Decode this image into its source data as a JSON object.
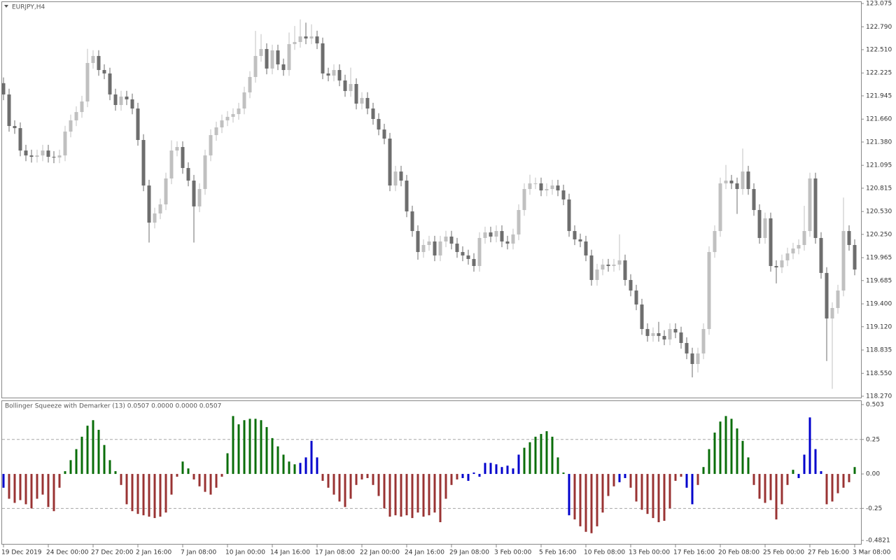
{
  "chart_data": [
    {
      "type": "candlestick",
      "title": "EURJPY,H4",
      "open": [
        122.1,
        121.962,
        121.576,
        121.55,
        121.276,
        121.216,
        121.199,
        121.216,
        121.276,
        121.199,
        121.191,
        121.216,
        121.508,
        121.645,
        121.747,
        121.876,
        122.347,
        122.433,
        122.261,
        122.219,
        121.962,
        121.833,
        121.936,
        121.902,
        121.79,
        121.405,
        120.848,
        120.394,
        120.506,
        120.617,
        120.934,
        121.276,
        121.319,
        121.062,
        120.908,
        120.592,
        120.805,
        121.216,
        121.465,
        121.559,
        121.645,
        121.688,
        121.722,
        121.79,
        121.987,
        122.176,
        122.433,
        122.518,
        122.279,
        122.501,
        122.33,
        122.261,
        122.578,
        122.604,
        122.672,
        122.647,
        122.672,
        122.587,
        122.219,
        122.193,
        122.261,
        122.133,
        122.004,
        122.09,
        121.85,
        121.919,
        121.79,
        121.662,
        121.533,
        121.422,
        120.848,
        121.019,
        120.908,
        120.531,
        120.291,
        120.034,
        120.12,
        120.163,
        119.992,
        120.163,
        120.223,
        120.137,
        120.034,
        119.992,
        119.949,
        119.863,
        120.206,
        120.274,
        120.223,
        120.291,
        120.163,
        120.137,
        120.249,
        120.548,
        120.805,
        120.874,
        120.874,
        120.788,
        120.805,
        120.848,
        120.788,
        120.677,
        120.291,
        120.189,
        120.163,
        119.992,
        119.692,
        119.82,
        119.88,
        119.863,
        119.88,
        119.932,
        119.692,
        119.563,
        119.392,
        119.092,
        119.007,
        119.041,
        119.007,
        118.964,
        119.092,
        119.05,
        118.921,
        118.793,
        118.664,
        118.793,
        119.092,
        120.034,
        120.291,
        120.874,
        120.908,
        120.874,
        120.805,
        121.019,
        120.805,
        120.548,
        120.206,
        120.446,
        119.863,
        119.846,
        119.932,
        120.017,
        120.077,
        120.12,
        120.291,
        120.934,
        120.206,
        119.778,
        119.221,
        119.349,
        119.563,
        120.291,
        120.12
      ],
      "high": [
        122.17,
        122.032,
        121.646,
        121.62,
        121.346,
        121.286,
        121.286,
        121.346,
        121.346,
        121.269,
        121.286,
        121.578,
        121.715,
        121.817,
        121.946,
        122.52,
        122.503,
        122.503,
        122.331,
        122.289,
        122.032,
        122.006,
        122.006,
        121.972,
        121.86,
        121.475,
        120.918,
        120.576,
        120.687,
        121.004,
        121.4,
        121.389,
        121.389,
        121.132,
        120.978,
        120.875,
        121.286,
        121.535,
        121.629,
        121.715,
        121.758,
        121.792,
        121.86,
        122.057,
        122.246,
        122.74,
        122.7,
        122.588,
        122.571,
        122.571,
        122.4,
        122.72,
        122.8,
        122.88,
        122.84,
        122.82,
        122.742,
        122.657,
        122.289,
        122.331,
        122.331,
        122.203,
        122.29,
        122.16,
        121.989,
        121.989,
        121.86,
        121.732,
        121.603,
        121.492,
        121.089,
        121.089,
        120.978,
        120.601,
        120.361,
        120.19,
        120.233,
        120.233,
        120.233,
        120.293,
        120.293,
        120.207,
        120.104,
        120.062,
        120.019,
        120.276,
        120.344,
        120.344,
        120.361,
        120.361,
        120.233,
        120.319,
        120.618,
        120.875,
        120.98,
        120.944,
        120.944,
        120.875,
        120.918,
        120.918,
        120.858,
        120.747,
        120.361,
        120.259,
        120.233,
        120.062,
        119.89,
        119.95,
        119.95,
        119.95,
        120.25,
        120.002,
        119.762,
        119.633,
        119.462,
        119.162,
        119.111,
        119.18,
        119.077,
        119.162,
        119.162,
        119.12,
        118.991,
        118.863,
        118.863,
        119.162,
        120.104,
        120.361,
        120.944,
        121.1,
        120.978,
        120.944,
        121.3,
        121.089,
        120.875,
        120.618,
        120.516,
        120.516,
        119.933,
        120.002,
        120.087,
        120.147,
        120.19,
        120.6,
        121.004,
        121.004,
        120.276,
        119.848,
        119.419,
        119.633,
        120.7,
        120.361,
        120.19
      ],
      "low": [
        121.892,
        121.506,
        121.48,
        121.206,
        121.146,
        121.129,
        121.129,
        121.146,
        121.129,
        121.121,
        121.121,
        121.146,
        121.438,
        121.575,
        121.677,
        121.806,
        122.277,
        122.191,
        122.149,
        121.892,
        121.763,
        121.763,
        121.832,
        121.72,
        121.335,
        120.778,
        120.15,
        120.324,
        120.436,
        120.547,
        120.864,
        121.206,
        120.992,
        120.838,
        120.15,
        120.522,
        120.735,
        121.146,
        121.395,
        121.489,
        121.575,
        121.618,
        121.652,
        121.72,
        121.917,
        122.106,
        122.363,
        122.209,
        122.209,
        122.26,
        122.191,
        122.191,
        122.508,
        122.534,
        122.577,
        122.577,
        122.517,
        122.149,
        122.123,
        122.123,
        122.063,
        121.934,
        121.934,
        121.78,
        121.78,
        121.72,
        121.592,
        121.463,
        121.352,
        120.778,
        120.778,
        120.838,
        120.461,
        120.221,
        119.94,
        119.964,
        120.05,
        119.922,
        119.922,
        120.093,
        120.067,
        119.964,
        119.922,
        119.879,
        119.793,
        119.793,
        120.136,
        120.153,
        120.153,
        120.093,
        120.067,
        120.067,
        120.179,
        120.478,
        120.735,
        120.804,
        120.718,
        120.718,
        120.735,
        120.718,
        120.607,
        120.221,
        120.119,
        120.093,
        119.922,
        119.622,
        119.622,
        119.75,
        119.793,
        119.793,
        119.81,
        119.622,
        119.493,
        119.322,
        119.022,
        118.937,
        118.937,
        118.937,
        118.894,
        118.894,
        118.98,
        118.851,
        118.723,
        118.5,
        118.56,
        118.723,
        119.022,
        119.964,
        120.221,
        120.804,
        120.804,
        120.5,
        120.735,
        120.735,
        120.478,
        120.136,
        120.136,
        119.793,
        119.65,
        119.776,
        119.862,
        119.947,
        120.007,
        120.05,
        120.221,
        120.136,
        119.708,
        118.7,
        118.36,
        119.28,
        119.493,
        120.05,
        119.75
      ],
      "close": [
        121.962,
        121.576,
        121.55,
        121.276,
        121.216,
        121.199,
        121.216,
        121.276,
        121.199,
        121.191,
        121.216,
        121.508,
        121.645,
        121.747,
        121.876,
        122.347,
        122.433,
        122.261,
        122.219,
        121.962,
        121.833,
        121.936,
        121.902,
        121.79,
        121.405,
        120.848,
        120.394,
        120.506,
        120.617,
        120.934,
        121.276,
        121.319,
        121.062,
        120.908,
        120.592,
        120.805,
        121.216,
        121.465,
        121.559,
        121.645,
        121.688,
        121.722,
        121.79,
        121.987,
        122.176,
        122.433,
        122.518,
        122.279,
        122.501,
        122.33,
        122.261,
        122.578,
        122.604,
        122.672,
        122.647,
        122.672,
        122.587,
        122.219,
        122.193,
        122.261,
        122.133,
        122.004,
        122.09,
        121.85,
        121.919,
        121.79,
        121.662,
        121.533,
        121.422,
        120.848,
        121.019,
        120.908,
        120.531,
        120.291,
        120.034,
        120.12,
        120.163,
        119.992,
        120.163,
        120.223,
        120.137,
        120.034,
        119.992,
        119.949,
        119.863,
        120.206,
        120.274,
        120.223,
        120.291,
        120.163,
        120.137,
        120.249,
        120.548,
        120.805,
        120.874,
        120.874,
        120.788,
        120.805,
        120.848,
        120.788,
        120.677,
        120.291,
        120.189,
        120.163,
        119.992,
        119.692,
        119.82,
        119.88,
        119.863,
        119.88,
        119.932,
        119.692,
        119.563,
        119.392,
        119.092,
        119.007,
        119.041,
        119.007,
        118.964,
        119.092,
        119.05,
        118.921,
        118.793,
        118.664,
        118.793,
        119.092,
        120.034,
        120.291,
        120.874,
        120.908,
        120.874,
        120.805,
        121.019,
        120.805,
        120.548,
        120.206,
        120.446,
        119.863,
        119.846,
        119.932,
        120.017,
        120.077,
        120.12,
        120.291,
        120.934,
        120.206,
        119.778,
        119.221,
        119.349,
        119.563,
        120.291,
        120.12,
        119.82
      ],
      "up_color": "#c0c0c0",
      "down_color": "#6e6e6e",
      "ylim": [
        118.27,
        123.075
      ],
      "yticks": [
        123.075,
        {
          "value": 122.79,
          "label": "122.790"
        },
        {
          "value": 122.51,
          "label": "122.510"
        },
        122.225,
        121.945,
        {
          "value": 121.66,
          "label": "121.660"
        },
        {
          "value": 121.38,
          "label": "121.380"
        },
        121.095,
        120.815,
        {
          "value": 120.53,
          "label": "120.530"
        },
        {
          "value": 120.25,
          "label": "120.250"
        },
        119.965,
        119.685,
        {
          "value": 119.4,
          "label": "119.400"
        },
        {
          "value": 119.12,
          "label": "119.120"
        },
        118.835,
        {
          "value": 118.55,
          "label": "118.550"
        },
        {
          "value": 118.27,
          "label": "118.270"
        }
      ]
    },
    {
      "type": "bar",
      "title": "Bollinger Squeeze with Demarker (13) 0.0507 0.0000 0.0000 0.0507",
      "categories": [
        "19 Dec 2019",
        null,
        null,
        null,
        null,
        null,
        null,
        null,
        "24 Dec 00:00",
        null,
        null,
        null,
        null,
        null,
        null,
        null,
        "27 Dec 20:00",
        null,
        null,
        null,
        null,
        null,
        null,
        null,
        "2 Jan 16:00",
        null,
        null,
        null,
        null,
        null,
        null,
        null,
        "7 Jan 08:00",
        null,
        null,
        null,
        null,
        null,
        null,
        null,
        "10 Jan 00:00",
        null,
        null,
        null,
        null,
        null,
        null,
        null,
        "14 Jan 16:00",
        null,
        null,
        null,
        null,
        null,
        null,
        null,
        "17 Jan 08:00",
        null,
        null,
        null,
        null,
        null,
        null,
        null,
        "22 Jan 00:00",
        null,
        null,
        null,
        null,
        null,
        null,
        null,
        "24 Jan 16:00",
        null,
        null,
        null,
        null,
        null,
        null,
        null,
        "29 Jan 08:00",
        null,
        null,
        null,
        null,
        null,
        null,
        null,
        "3 Feb 00:00",
        null,
        null,
        null,
        null,
        null,
        null,
        null,
        "5 Feb 16:00",
        null,
        null,
        null,
        null,
        null,
        null,
        null,
        "10 Feb 08:00",
        null,
        null,
        null,
        null,
        null,
        null,
        null,
        "13 Feb 00:00",
        null,
        null,
        null,
        null,
        null,
        null,
        null,
        "17 Feb 16:00",
        null,
        null,
        null,
        null,
        null,
        null,
        null,
        "20 Feb 08:00",
        null,
        null,
        null,
        null,
        null,
        null,
        null,
        "25 Feb 00:00",
        null,
        null,
        null,
        null,
        null,
        null,
        null,
        "27 Feb 16:00",
        null,
        null,
        null,
        null,
        null,
        null,
        null,
        "3 Mar 08:00"
      ],
      "values": [
        -0.1,
        -0.18,
        -0.21,
        -0.19,
        -0.22,
        -0.25,
        -0.18,
        -0.15,
        -0.24,
        -0.27,
        -0.1,
        0.02,
        0.1,
        0.18,
        0.27,
        0.35,
        0.39,
        0.32,
        0.21,
        0.1,
        0.02,
        -0.08,
        -0.22,
        -0.27,
        -0.29,
        -0.3,
        -0.31,
        -0.32,
        -0.31,
        -0.28,
        -0.15,
        -0.02,
        0.09,
        0.04,
        -0.04,
        -0.09,
        -0.13,
        -0.15,
        -0.1,
        -0.02,
        0.15,
        0.42,
        0.36,
        0.39,
        0.4,
        0.4,
        0.39,
        0.34,
        0.26,
        0.2,
        0.14,
        0.09,
        0.07,
        0.08,
        0.12,
        0.24,
        0.12,
        -0.05,
        -0.1,
        -0.15,
        -0.2,
        -0.24,
        -0.18,
        -0.08,
        -0.04,
        -0.03,
        -0.08,
        -0.16,
        -0.25,
        -0.31,
        -0.3,
        -0.31,
        -0.3,
        -0.32,
        -0.28,
        -0.31,
        -0.3,
        -0.28,
        -0.35,
        -0.18,
        -0.08,
        -0.04,
        -0.03,
        -0.05,
        0.01,
        -0.02,
        0.08,
        0.08,
        0.07,
        0.05,
        0.06,
        0.04,
        0.14,
        0.19,
        0.23,
        0.27,
        0.29,
        0.31,
        0.27,
        0.12,
        0.01,
        -0.3,
        -0.33,
        -0.38,
        -0.42,
        -0.43,
        -0.38,
        -0.28,
        -0.16,
        -0.09,
        -0.06,
        -0.03,
        -0.1,
        -0.2,
        -0.26,
        -0.29,
        -0.32,
        -0.35,
        -0.34,
        -0.25,
        -0.05,
        -0.02,
        -0.1,
        -0.22,
        -0.08,
        0.05,
        0.18,
        0.3,
        0.38,
        0.42,
        0.4,
        0.33,
        0.24,
        0.12,
        -0.08,
        -0.18,
        -0.21,
        -0.19,
        -0.33,
        -0.22,
        -0.08,
        0.03,
        -0.03,
        0.14,
        0.41,
        0.18,
        0.02,
        -0.22,
        -0.2,
        -0.14,
        -0.1,
        -0.06,
        0.05
      ],
      "colors": [
        "#0000cc",
        "#993333",
        "#993333",
        "#993333",
        "#993333",
        "#993333",
        "#993333",
        "#993333",
        "#993333",
        "#993333",
        "#993333",
        "#0a6e0a",
        "#0a6e0a",
        "#0a6e0a",
        "#0a6e0a",
        "#0a6e0a",
        "#0a6e0a",
        "#0a6e0a",
        "#0a6e0a",
        "#0a6e0a",
        "#0a6e0a",
        "#993333",
        "#993333",
        "#993333",
        "#993333",
        "#993333",
        "#993333",
        "#993333",
        "#993333",
        "#993333",
        "#993333",
        "#993333",
        "#0a6e0a",
        "#0a6e0a",
        "#993333",
        "#993333",
        "#993333",
        "#993333",
        "#993333",
        "#993333",
        "#0a6e0a",
        "#0a6e0a",
        "#0a6e0a",
        "#0a6e0a",
        "#0a6e0a",
        "#0a6e0a",
        "#0a6e0a",
        "#0a6e0a",
        "#0a6e0a",
        "#0a6e0a",
        "#0a6e0a",
        "#0a6e0a",
        "#0a6e0a",
        "#0000cc",
        "#0000cc",
        "#0000cc",
        "#0000cc",
        "#993333",
        "#993333",
        "#993333",
        "#993333",
        "#993333",
        "#993333",
        "#993333",
        "#993333",
        "#993333",
        "#993333",
        "#993333",
        "#993333",
        "#993333",
        "#993333",
        "#993333",
        "#993333",
        "#993333",
        "#993333",
        "#993333",
        "#993333",
        "#993333",
        "#993333",
        "#993333",
        "#993333",
        "#993333",
        "#0000cc",
        "#0000cc",
        "#0000cc",
        "#0000cc",
        "#0000cc",
        "#0000cc",
        "#0000cc",
        "#0000cc",
        "#0000cc",
        "#0000cc",
        "#0000cc",
        "#0a6e0a",
        "#0a6e0a",
        "#0a6e0a",
        "#0a6e0a",
        "#0a6e0a",
        "#0a6e0a",
        "#0a6e0a",
        "#0a6e0a",
        "#0000cc",
        "#993333",
        "#993333",
        "#993333",
        "#993333",
        "#993333",
        "#993333",
        "#993333",
        "#993333",
        "#0000cc",
        "#0000cc",
        "#993333",
        "#993333",
        "#993333",
        "#993333",
        "#993333",
        "#993333",
        "#993333",
        "#993333",
        "#993333",
        "#993333",
        "#0000cc",
        "#0000cc",
        "#993333",
        "#0a6e0a",
        "#0a6e0a",
        "#0a6e0a",
        "#0a6e0a",
        "#0a6e0a",
        "#0a6e0a",
        "#0a6e0a",
        "#0a6e0a",
        "#0a6e0a",
        "#993333",
        "#993333",
        "#993333",
        "#993333",
        "#993333",
        "#993333",
        "#993333",
        "#0a6e0a",
        "#0000cc",
        "#0000cc",
        "#0000cc",
        "#0000cc",
        "#0000cc",
        "#993333",
        "#993333",
        "#993333",
        "#993333",
        "#993333",
        "#0a6e0a"
      ],
      "ylim": [
        -0.4821,
        0.503
      ],
      "yticks": [
        0.503,
        0.25,
        {
          "value": 0,
          "label": "0.00"
        },
        -0.25,
        -0.4821
      ],
      "reference_lines": [
        0.25,
        -0.25
      ]
    }
  ]
}
